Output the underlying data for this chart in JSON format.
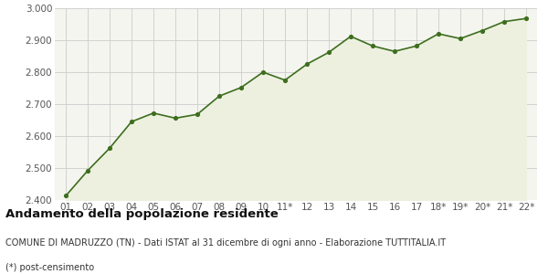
{
  "x_labels": [
    "01",
    "02",
    "03",
    "04",
    "05",
    "06",
    "07",
    "08",
    "09",
    "10",
    "11*",
    "12",
    "13",
    "14",
    "15",
    "16",
    "17",
    "18*",
    "19*",
    "20*",
    "21*",
    "22*"
  ],
  "y_values": [
    2413,
    2492,
    2562,
    2645,
    2672,
    2656,
    2668,
    2725,
    2752,
    2800,
    2775,
    2825,
    2862,
    2912,
    2882,
    2865,
    2882,
    2920,
    2905,
    2930,
    2958,
    2968
  ],
  "line_color": "#3d6e1e",
  "fill_color": "#edf0df",
  "marker_color": "#3d6e1e",
  "bg_color": "#ffffff",
  "plot_bg_color": "#f5f5f0",
  "grid_color": "#cccccc",
  "title": "Andamento della popolazione residente",
  "subtitle": "COMUNE DI MADRUZZO (TN) - Dati ISTAT al 31 dicembre di ogni anno - Elaborazione TUTTITALIA.IT",
  "footnote": "(*) post-censimento",
  "ylim": [
    2400,
    3000
  ],
  "yticks": [
    2400,
    2500,
    2600,
    2700,
    2800,
    2900,
    3000
  ],
  "title_fontsize": 9.5,
  "subtitle_fontsize": 7.0,
  "footnote_fontsize": 7.0,
  "tick_fontsize": 7.5
}
